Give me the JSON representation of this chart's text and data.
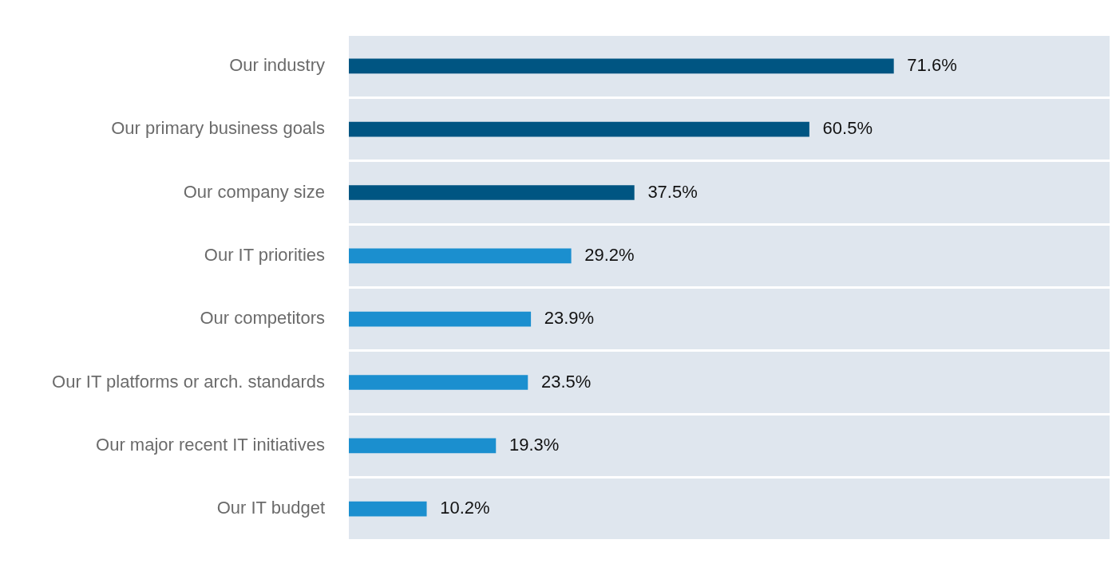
{
  "chart_data": {
    "type": "bar",
    "orientation": "horizontal",
    "categories": [
      "Our industry",
      "Our primary business goals",
      "Our company size",
      "Our IT priorities",
      "Our competitors",
      "Our IT platforms or arch. standards",
      "Our major recent IT initiatives",
      "Our IT budget"
    ],
    "values": [
      71.6,
      60.5,
      37.5,
      29.2,
      23.9,
      23.5,
      19.3,
      10.2
    ],
    "colors": [
      "#005582",
      "#005582",
      "#005582",
      "#1b8fcf",
      "#1b8fcf",
      "#1b8fcf",
      "#1b8fcf",
      "#1b8fcf"
    ],
    "value_labels": [
      "71.6%",
      "60.5%",
      "37.5%",
      "29.2%",
      "23.9%",
      "23.5%",
      "19.3%",
      "10.2%"
    ],
    "xlim": [
      0,
      100
    ],
    "grid": "y",
    "legend": false,
    "tick_labels": "y"
  }
}
